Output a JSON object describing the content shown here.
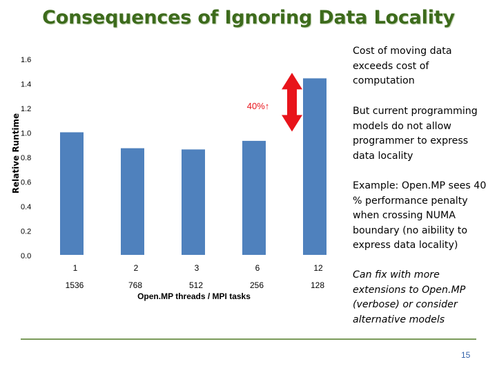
{
  "title": "Consequences of Ignoring Data Locality",
  "notes": {
    "cost": "Cost of moving data exceeds cost of computation",
    "models": "But current programming models do not allow programmer to express data locality",
    "example": "Example:  Open.MP sees 40 % performance penalty when crossing NUMA boundary (no aibility to express data locality)",
    "fix": "Can fix with more extensions to Open.MP (verbose) or consider alternative models"
  },
  "page_number": "15",
  "colors": {
    "title": "#3d6b1c",
    "bar": "#4f81bd",
    "arrow": "#e8141b",
    "divider": "#7a9a5a"
  },
  "chart_data": {
    "type": "bar",
    "ylabel": "Relative Runtime",
    "xlabel": "Open.MP threads / MPI tasks",
    "ylim": [
      0,
      1.6
    ],
    "yticks": [
      "0.0",
      "0.2",
      "0.4",
      "0.6",
      "0.8",
      "1.0",
      "1.2",
      "1.4",
      "1.6"
    ],
    "categories": [
      "1",
      "2",
      "3",
      "6",
      "12"
    ],
    "mpi_tasks": [
      "1536",
      "768",
      "512",
      "256",
      "128"
    ],
    "values": [
      1.0,
      0.87,
      0.86,
      0.93,
      1.44
    ],
    "annotation": "40%↑",
    "grid": false,
    "legend": "none"
  }
}
